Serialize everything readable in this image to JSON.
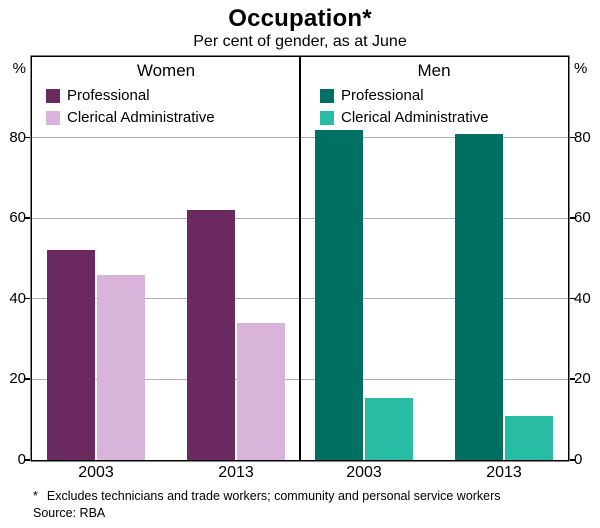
{
  "chart_data": {
    "type": "bar",
    "title": "Occupation*",
    "subtitle": "Per cent of gender, as at June",
    "unit": "%",
    "ylim": [
      0,
      100
    ],
    "yticks": [
      0,
      20,
      40,
      60,
      80
    ],
    "grid": true,
    "legend_position": "top-left-inside-each-panel",
    "panels": [
      {
        "title": "Women",
        "categories": [
          "2003",
          "2013"
        ],
        "series": [
          {
            "name": "Professional",
            "color": "#6A2A60",
            "values": [
              52,
              62
            ]
          },
          {
            "name": "Clerical Administrative",
            "color": "#D9B4DA",
            "values": [
              46,
              34
            ]
          }
        ]
      },
      {
        "title": "Men",
        "categories": [
          "2003",
          "2013"
        ],
        "series": [
          {
            "name": "Professional",
            "color": "#007062",
            "values": [
              82,
              81
            ]
          },
          {
            "name": "Clerical Administrative",
            "color": "#29BCA4",
            "values": [
              15.5,
              11
            ]
          }
        ]
      }
    ],
    "footnote_marker": "*",
    "footnote": "Excludes technicians and trade workers; community and personal service workers",
    "source": "Source: RBA"
  }
}
